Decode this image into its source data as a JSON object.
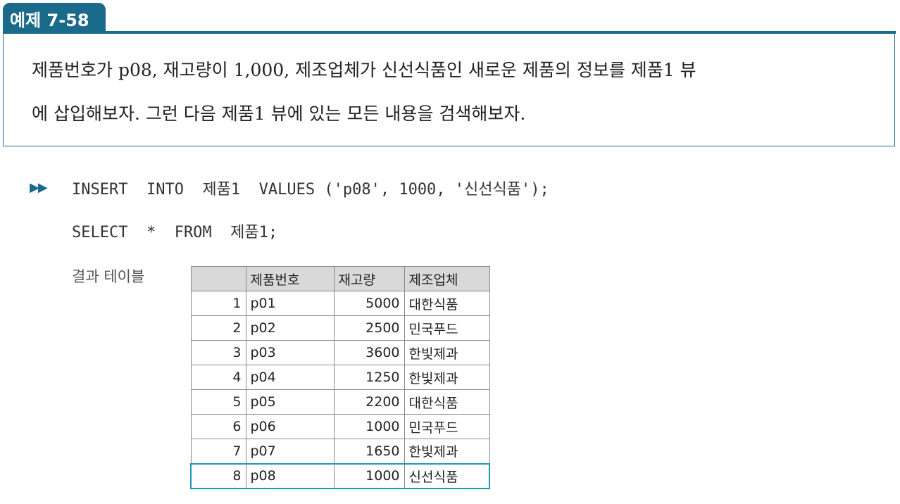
{
  "example": {
    "tag": "예제 7-58"
  },
  "problem": {
    "line1": "제품번호가 p08, 재고량이 1,000, 제조업체가 신선식품인 새로운 제품의 정보를 제품1 뷰",
    "line2": "에 삽입해보자. 그런 다음 제품1 뷰에 있는 모든 내용을 검색해보자."
  },
  "code": {
    "arrows": "▶▶",
    "line1": "INSERT  INTO  제품1  VALUES ('p08', 1000, '신선식품');",
    "line2": "SELECT  *  FROM  제품1;"
  },
  "result": {
    "label": "결과 테이블",
    "columns": [
      "",
      "제품번호",
      "재고량",
      "제조업체"
    ],
    "rows": [
      [
        "1",
        "p01",
        "5000",
        "대한식품"
      ],
      [
        "2",
        "p02",
        "2500",
        "민국푸드"
      ],
      [
        "3",
        "p03",
        "3600",
        "한빛제과"
      ],
      [
        "4",
        "p04",
        "1250",
        "한빛제과"
      ],
      [
        "5",
        "p05",
        "2200",
        "대한식품"
      ],
      [
        "6",
        "p06",
        "1000",
        "민국푸드"
      ],
      [
        "7",
        "p07",
        "1650",
        "한빛제과"
      ],
      [
        "8",
        "p08",
        "1000",
        "신선식품"
      ]
    ],
    "highlight_color": "#1f9ab5"
  },
  "colors": {
    "accent": "#1a6a8c"
  }
}
